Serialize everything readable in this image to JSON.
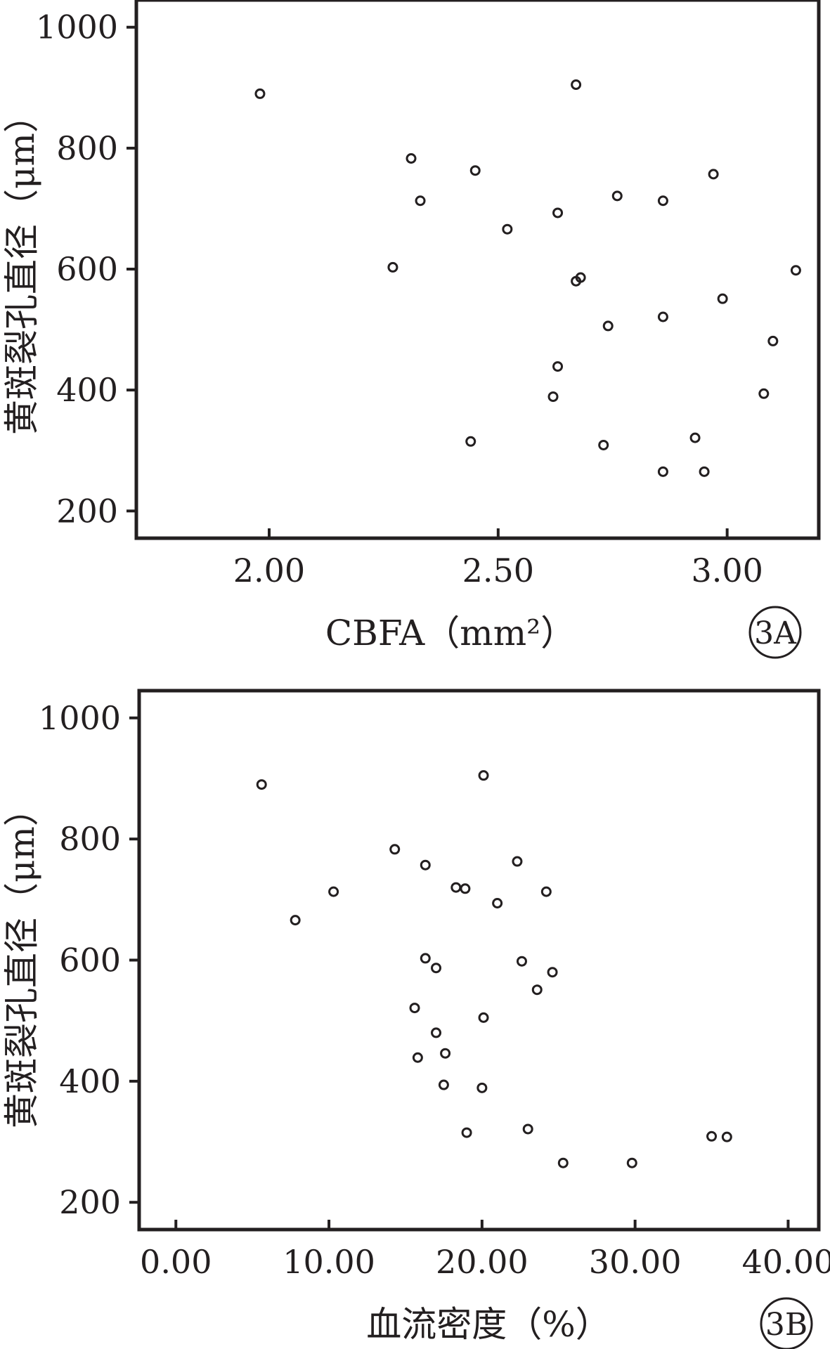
{
  "chart_data": [
    {
      "type": "scatter",
      "panel_label": "3A",
      "xlabel": "CBFA（mm²）",
      "ylabel": "黄斑裂孔直径（μm）",
      "xlim": [
        1.71,
        3.2
      ],
      "ylim": [
        155,
        1045
      ],
      "xticks": [
        2.0,
        2.5,
        3.0
      ],
      "xtick_labels": [
        "2.00",
        "2.50",
        "3.00"
      ],
      "yticks": [
        200,
        400,
        600,
        800,
        1000
      ],
      "ytick_labels": [
        "200",
        "400",
        "600",
        "800",
        "1000"
      ],
      "grid": false,
      "points": [
        {
          "x": 1.98,
          "y": 890
        },
        {
          "x": 2.67,
          "y": 905
        },
        {
          "x": 2.31,
          "y": 783
        },
        {
          "x": 2.45,
          "y": 763
        },
        {
          "x": 2.97,
          "y": 757
        },
        {
          "x": 2.33,
          "y": 713
        },
        {
          "x": 2.76,
          "y": 721
        },
        {
          "x": 2.86,
          "y": 713
        },
        {
          "x": 2.63,
          "y": 693
        },
        {
          "x": 2.52,
          "y": 666
        },
        {
          "x": 2.27,
          "y": 603
        },
        {
          "x": 3.15,
          "y": 598
        },
        {
          "x": 2.67,
          "y": 580
        },
        {
          "x": 2.68,
          "y": 586
        },
        {
          "x": 2.99,
          "y": 551
        },
        {
          "x": 2.86,
          "y": 521
        },
        {
          "x": 2.74,
          "y": 506
        },
        {
          "x": 3.1,
          "y": 481
        },
        {
          "x": 2.63,
          "y": 439
        },
        {
          "x": 2.62,
          "y": 389
        },
        {
          "x": 3.08,
          "y": 394
        },
        {
          "x": 2.44,
          "y": 315
        },
        {
          "x": 2.73,
          "y": 309
        },
        {
          "x": 2.93,
          "y": 321
        },
        {
          "x": 2.86,
          "y": 265
        },
        {
          "x": 2.95,
          "y": 265
        }
      ]
    },
    {
      "type": "scatter",
      "panel_label": "3B",
      "xlabel": "血流密度（%）",
      "ylabel": "黄斑裂孔直径（μm）",
      "xlim": [
        -2.4,
        42
      ],
      "ylim": [
        155,
        1045
      ],
      "xticks": [
        0,
        10,
        20,
        30,
        40
      ],
      "xtick_labels": [
        "0.00",
        "10.00",
        "20.00",
        "30.00",
        "40.00"
      ],
      "yticks": [
        200,
        400,
        600,
        800,
        1000
      ],
      "ytick_labels": [
        "200",
        "400",
        "600",
        "800",
        "1000"
      ],
      "grid": false,
      "points": [
        {
          "x": 5.6,
          "y": 890
        },
        {
          "x": 20.1,
          "y": 905
        },
        {
          "x": 14.3,
          "y": 783
        },
        {
          "x": 22.3,
          "y": 763
        },
        {
          "x": 16.3,
          "y": 757
        },
        {
          "x": 10.3,
          "y": 713
        },
        {
          "x": 18.3,
          "y": 720
        },
        {
          "x": 18.9,
          "y": 718
        },
        {
          "x": 24.2,
          "y": 713
        },
        {
          "x": 21.0,
          "y": 694
        },
        {
          "x": 7.8,
          "y": 666
        },
        {
          "x": 16.3,
          "y": 603
        },
        {
          "x": 22.6,
          "y": 598
        },
        {
          "x": 17.0,
          "y": 587
        },
        {
          "x": 24.6,
          "y": 580
        },
        {
          "x": 23.6,
          "y": 551
        },
        {
          "x": 15.6,
          "y": 521
        },
        {
          "x": 20.1,
          "y": 505
        },
        {
          "x": 17.0,
          "y": 480
        },
        {
          "x": 17.6,
          "y": 446
        },
        {
          "x": 15.8,
          "y": 439
        },
        {
          "x": 17.5,
          "y": 394
        },
        {
          "x": 20.0,
          "y": 389
        },
        {
          "x": 19.0,
          "y": 315
        },
        {
          "x": 23.0,
          "y": 321
        },
        {
          "x": 25.3,
          "y": 265
        },
        {
          "x": 29.8,
          "y": 265
        },
        {
          "x": 35.0,
          "y": 309
        },
        {
          "x": 36.0,
          "y": 308
        }
      ]
    }
  ]
}
